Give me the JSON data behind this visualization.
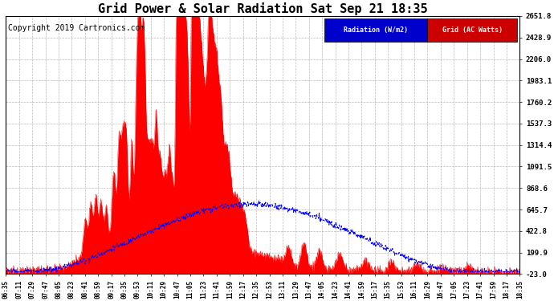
{
  "title": "Grid Power & Solar Radiation Sat Sep 21 18:35",
  "copyright": "Copyright 2019 Cartronics.com",
  "legend_items": [
    "Radiation (W/m2)",
    "Grid (AC Watts)"
  ],
  "ymin": -23.0,
  "ymax": 2651.8,
  "yticks": [
    2651.8,
    2428.9,
    2206.0,
    1983.1,
    1760.2,
    1537.3,
    1314.4,
    1091.5,
    868.6,
    645.7,
    422.8,
    199.9,
    -23.0
  ],
  "xtick_labels": [
    "06:35",
    "07:11",
    "07:29",
    "07:47",
    "08:05",
    "08:23",
    "08:41",
    "08:59",
    "09:17",
    "09:35",
    "09:53",
    "10:11",
    "10:29",
    "10:47",
    "11:05",
    "11:23",
    "11:41",
    "11:59",
    "12:17",
    "12:35",
    "12:53",
    "13:11",
    "13:29",
    "13:47",
    "14:05",
    "14:23",
    "14:41",
    "14:59",
    "15:17",
    "15:35",
    "15:53",
    "16:11",
    "16:29",
    "16:47",
    "17:05",
    "17:23",
    "17:41",
    "17:59",
    "18:17",
    "18:35"
  ],
  "background_color": "#ffffff",
  "grid_color": "#aaaaaa",
  "fill_color": "#ff0000",
  "line_color": "#0000ff",
  "title_fontsize": 11,
  "copyright_fontsize": 7,
  "legend_bg_blue": "#0000cc",
  "legend_bg_red": "#cc0000"
}
